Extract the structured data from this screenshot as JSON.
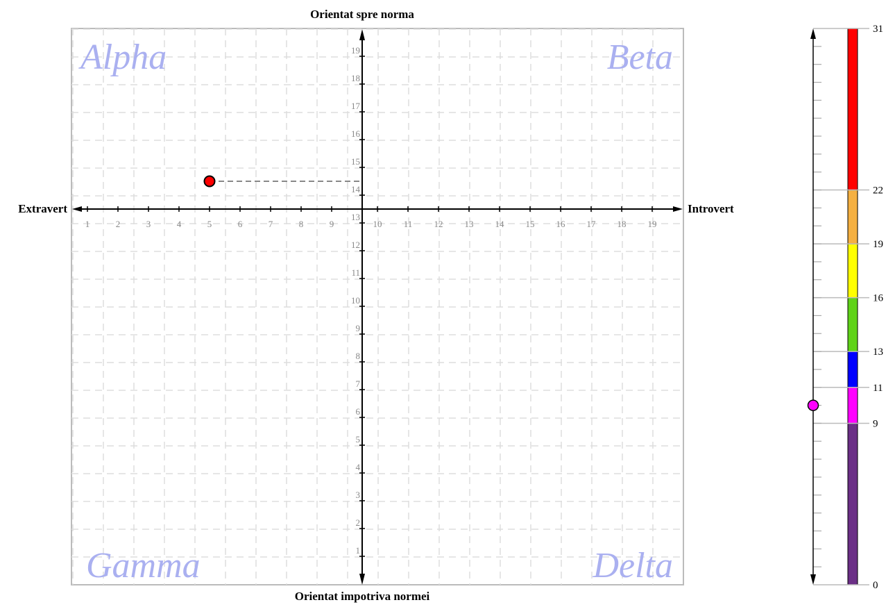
{
  "chart_data": {
    "type": "scatter",
    "title": "",
    "labels": {
      "top": "Orientat spre norma",
      "bottom": "Orientat impotriva normei",
      "left": "Extravert",
      "right": "Introvert"
    },
    "quadrants": {
      "top_left": "Alpha",
      "top_right": "Beta",
      "bottom_left": "Gamma",
      "bottom_right": "Delta"
    },
    "x_ticks": [
      "1",
      "2",
      "3",
      "4",
      "5",
      "6",
      "7",
      "8",
      "9",
      "10",
      "11",
      "12",
      "13",
      "14",
      "15",
      "16",
      "17",
      "18",
      "19"
    ],
    "y_ticks": [
      "1",
      "2",
      "3",
      "4",
      "5",
      "6",
      "7",
      "8",
      "9",
      "10",
      "11",
      "12",
      "13",
      "14",
      "15",
      "16",
      "17",
      "18",
      "19"
    ],
    "grid": true,
    "point": {
      "x": 5,
      "y": 14.5,
      "color": "#ff0000"
    },
    "scale": {
      "min": 0,
      "max": 31,
      "ticks": [
        0,
        9,
        11,
        13,
        16,
        19,
        22,
        31
      ],
      "tick_labels": [
        "0",
        "9",
        "11",
        "13",
        "16",
        "19",
        "22",
        "31"
      ],
      "bands": [
        {
          "from": 0,
          "to": 9,
          "color": "#6b2f86"
        },
        {
          "from": 9,
          "to": 11,
          "color": "#ff00ff"
        },
        {
          "from": 11,
          "to": 13,
          "color": "#0000ff"
        },
        {
          "from": 13,
          "to": 16,
          "color": "#5fd318"
        },
        {
          "from": 16,
          "to": 19,
          "color": "#ffff00"
        },
        {
          "from": 19,
          "to": 22,
          "color": "#f5b041"
        },
        {
          "from": 22,
          "to": 31,
          "color": "#ff0000"
        }
      ],
      "marker": {
        "value": 10,
        "color": "#ff00ff"
      }
    }
  }
}
